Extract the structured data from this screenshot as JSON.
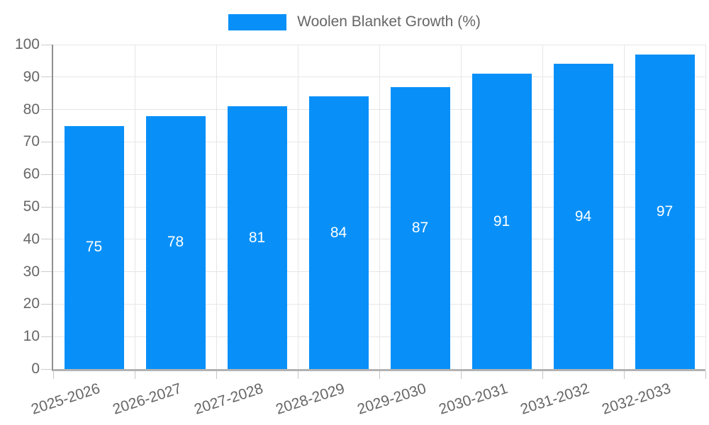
{
  "chart": {
    "legend": {
      "label": "Woolen Blanket Growth (%)"
    }
  },
  "chart_data": {
    "type": "bar",
    "title": "Woolen Blanket Growth (%)",
    "categories": [
      "2025-2026",
      "2026-2027",
      "2027-2028",
      "2028-2029",
      "2029-2030",
      "2030-2031",
      "2031-2032",
      "2032-2033"
    ],
    "values": [
      75,
      78,
      81,
      84,
      87,
      91,
      94,
      97
    ],
    "xlabel": "",
    "ylabel": "",
    "ylim": [
      0,
      100
    ],
    "ytick_step": 10,
    "yticks": [
      0,
      10,
      20,
      30,
      40,
      50,
      60,
      70,
      80,
      90,
      100
    ],
    "grid": true,
    "legend_position": "top",
    "value_labels": "inside-center",
    "colors": {
      "bar": "#0890f8",
      "value_label": "#ffffff",
      "text": "#666666",
      "grid": "#e6e6e6",
      "axis_left": "#8f8f8f",
      "axis_bottom": "#b3b3b3",
      "tick": "#cccccc"
    }
  }
}
